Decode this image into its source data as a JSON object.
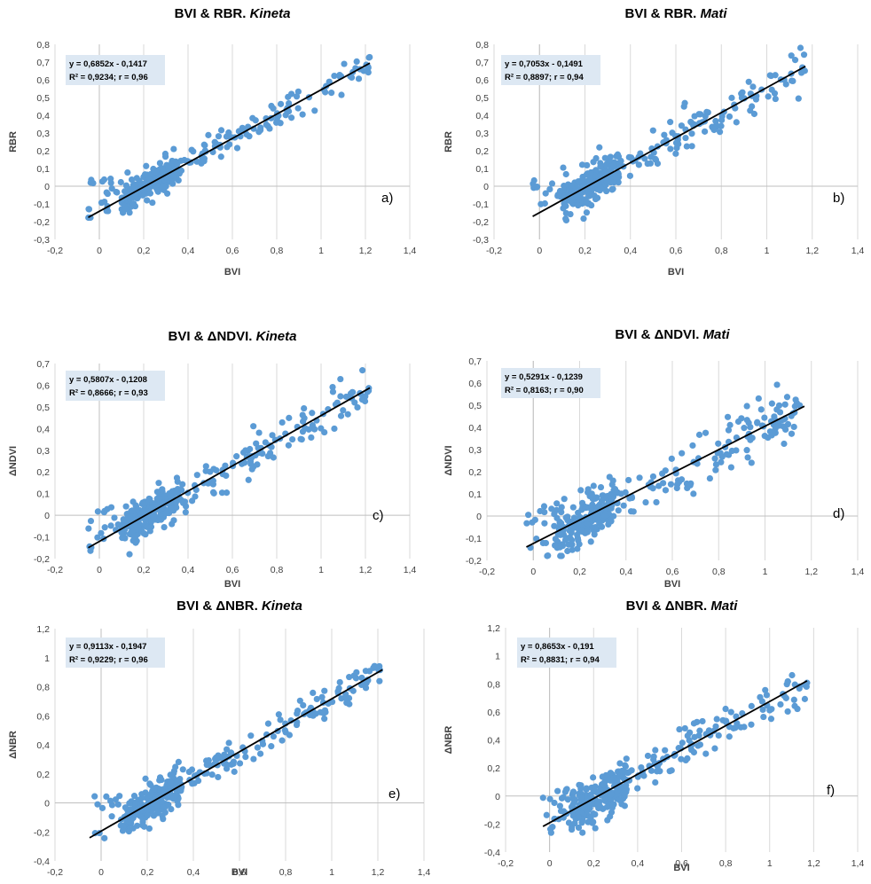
{
  "chart_data": [
    {
      "type": "scatter",
      "panel_label": "a)",
      "title": "BVI & RBR.",
      "title_italic": "Kineta",
      "xlabel": "BVI",
      "ylabel": "RBR",
      "xlim": [
        -0.2,
        1.4
      ],
      "ylim": [
        -0.3,
        0.8
      ],
      "xticks": [
        "-0,2",
        "0",
        "0,2",
        "0,4",
        "0,6",
        "0,8",
        "1",
        "1,2",
        "1,4"
      ],
      "yticks": [
        "-0,3",
        "-0,2",
        "-0,1",
        "0",
        "0,1",
        "0,2",
        "0,3",
        "0,4",
        "0,5",
        "0,6",
        "0,7",
        "0,8"
      ],
      "grid": "vertical",
      "equation": "y = 0,6852x - 0,1417",
      "stats": "R² = 0,9234; r = 0,96",
      "trendline": {
        "slope": 0.6852,
        "intercept": -0.1417,
        "x_range": [
          -0.05,
          1.22
        ]
      },
      "points_summary": {
        "count": 360,
        "x_range": [
          -0.05,
          1.22
        ],
        "cluster_x": [
          0.1,
          0.35
        ],
        "spread": 0.04
      },
      "marker_color": "#5b9bd5",
      "line_color": "#000000"
    },
    {
      "type": "scatter",
      "panel_label": "b)",
      "title": "BVI & RBR.",
      "title_italic": "Mati",
      "xlabel": "BVI",
      "ylabel": "RBR",
      "xlim": [
        -0.2,
        1.4
      ],
      "ylim": [
        -0.3,
        0.8
      ],
      "xticks": [
        "-0,2",
        "0",
        "0,2",
        "0,4",
        "0,6",
        "0,8",
        "1",
        "1,2",
        "1,4"
      ],
      "yticks": [
        "-0,3",
        "-0,2",
        "-0,1",
        "0",
        "0,1",
        "0,2",
        "0,3",
        "0,4",
        "0,5",
        "0,6",
        "0,7",
        "0,8"
      ],
      "grid": "vertical",
      "equation": "y = 0,7053x - 0,1491",
      "stats": "R² = 0,8897; r = 0,94",
      "trendline": {
        "slope": 0.7053,
        "intercept": -0.1491,
        "x_range": [
          -0.03,
          1.17
        ]
      },
      "points_summary": {
        "count": 340,
        "x_range": [
          -0.03,
          1.17
        ],
        "cluster_x": [
          0.1,
          0.35
        ],
        "spread": 0.055
      },
      "marker_color": "#5b9bd5",
      "line_color": "#000000"
    },
    {
      "type": "scatter",
      "panel_label": "c)",
      "title": "BVI & ΔNDVI.",
      "title_italic": "Kineta",
      "xlabel": "BVI",
      "ylabel": "ΔNDVI",
      "xlim": [
        -0.2,
        1.4
      ],
      "ylim": [
        -0.2,
        0.7
      ],
      "xticks": [
        "-0,2",
        "0",
        "0,2",
        "0,4",
        "0,6",
        "0,8",
        "1",
        "1,2",
        "1,4"
      ],
      "yticks": [
        "-0,2",
        "-0,1",
        "0",
        "0,1",
        "0,2",
        "0,3",
        "0,4",
        "0,5",
        "0,6",
        "0,7"
      ],
      "grid": "vertical",
      "equation": "y = 0,5807x - 0,1208",
      "stats": "R² = 0,8666; r = 0,93",
      "trendline": {
        "slope": 0.5807,
        "intercept": -0.1208,
        "x_range": [
          -0.05,
          1.22
        ]
      },
      "points_summary": {
        "count": 360,
        "x_range": [
          -0.05,
          1.22
        ],
        "cluster_x": [
          0.1,
          0.35
        ],
        "spread": 0.045
      },
      "marker_color": "#5b9bd5",
      "line_color": "#000000"
    },
    {
      "type": "scatter",
      "panel_label": "d)",
      "title": "BVI & ΔNDVI.",
      "title_italic": "Mati",
      "xlabel": "BVI",
      "ylabel": "ΔNDVI",
      "xlim": [
        -0.2,
        1.4
      ],
      "ylim": [
        -0.2,
        0.7
      ],
      "xticks": [
        "-0,2",
        "0",
        "0,2",
        "0,4",
        "0,6",
        "0,8",
        "1",
        "1,2",
        "1,4"
      ],
      "yticks": [
        "-0,2",
        "-0,1",
        "0",
        "0,1",
        "0,2",
        "0,3",
        "0,4",
        "0,5",
        "0,6",
        "0,7"
      ],
      "grid": "vertical",
      "equation": "y = 0,5291x - 0,1239",
      "stats": "R² = 0,8163; r = 0,90",
      "trendline": {
        "slope": 0.5291,
        "intercept": -0.1239,
        "x_range": [
          -0.03,
          1.17
        ]
      },
      "points_summary": {
        "count": 340,
        "x_range": [
          -0.03,
          1.17
        ],
        "cluster_x": [
          0.1,
          0.35
        ],
        "spread": 0.06
      },
      "marker_color": "#5b9bd5",
      "line_color": "#000000"
    },
    {
      "type": "scatter",
      "panel_label": "e)",
      "title": "BVI & ΔNBR.",
      "title_italic": "Kineta",
      "xlabel": "BVI",
      "ylabel": "ΔNBR",
      "xlim": [
        -0.2,
        1.4
      ],
      "ylim": [
        -0.4,
        1.2
      ],
      "xticks": [
        "-0,2",
        "0",
        "0,2",
        "0,4",
        "0,6",
        "0,8",
        "1",
        "1,2",
        "1,4"
      ],
      "yticks": [
        "-0,4",
        "-0,2",
        "0",
        "0,2",
        "0,4",
        "0,6",
        "0,8",
        "1",
        "1,2"
      ],
      "grid": "vertical",
      "equation": "y = 0,9113x - 0,1947",
      "stats": "R² = 0,9229; r = 0,96",
      "trendline": {
        "slope": 0.9113,
        "intercept": -0.1947,
        "x_range": [
          -0.05,
          1.22
        ]
      },
      "points_summary": {
        "count": 360,
        "x_range": [
          -0.05,
          1.22
        ],
        "cluster_x": [
          0.1,
          0.35
        ],
        "spread": 0.055
      },
      "marker_color": "#5b9bd5",
      "line_color": "#000000"
    },
    {
      "type": "scatter",
      "panel_label": "f)",
      "title": "BVI & ΔNBR.",
      "title_italic": "Mati",
      "xlabel": "BVI",
      "ylabel": "ΔNBR",
      "xlim": [
        -0.2,
        1.4
      ],
      "ylim": [
        -0.4,
        1.2
      ],
      "xticks": [
        "-0,2",
        "0",
        "0,2",
        "0,4",
        "0,6",
        "0,8",
        "1",
        "1,2",
        "1,4"
      ],
      "yticks": [
        "-0,4",
        "-0,2",
        "0",
        "0,2",
        "0,4",
        "0,6",
        "0,8",
        "1",
        "1,2"
      ],
      "grid": "vertical",
      "equation": "y = 0,8653x - 0,191",
      "stats": "R² = 0,8831; r = 0,94",
      "trendline": {
        "slope": 0.8653,
        "intercept": -0.191,
        "x_range": [
          -0.03,
          1.17
        ]
      },
      "points_summary": {
        "count": 340,
        "x_range": [
          -0.03,
          1.17
        ],
        "cluster_x": [
          0.1,
          0.35
        ],
        "spread": 0.075
      },
      "marker_color": "#5b9bd5",
      "line_color": "#000000"
    }
  ]
}
